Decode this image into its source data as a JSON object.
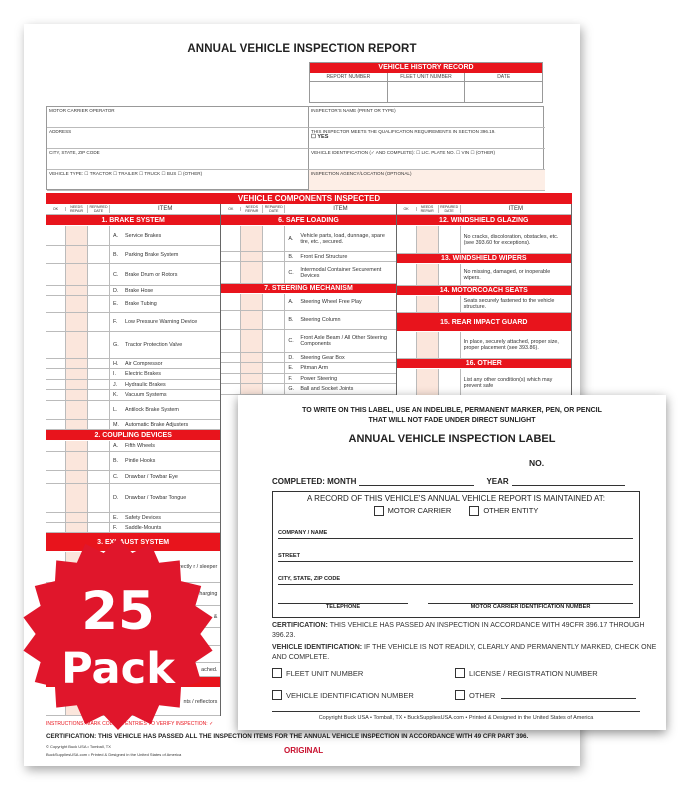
{
  "report": {
    "title": "ANNUAL VEHICLE INSPECTION REPORT",
    "history": {
      "title": "VEHICLE HISTORY RECORD",
      "columns": [
        "REPORT NUMBER",
        "FLEET UNIT NUMBER",
        "DATE"
      ]
    },
    "fields": {
      "motor_carrier": "MOTOR CARRIER OPERATOR",
      "inspector": "INSPECTOR'S NAME (PRINT OR TYPE)",
      "address": "ADDRESS",
      "qualification": "THIS INSPECTOR MEETS THE QUALIFICATION REQUIREMENTS IN SECTION 396.19.",
      "yes": "☐ YES",
      "city": "CITY, STATE, ZIP CODE",
      "vehicle_id": "VEHICLE IDENTIFICATION (✓ AND COMPLETE):   ☐ LIC. PLATE NO.   ☐ VIN   ☐ (OTHER)",
      "vehicle_type": "VEHICLE TYPE:   ☐ TRACTOR   ☐ TRAILER   ☐ TRUCK   ☐ BUS   ☐ (OTHER)",
      "agency": "INSPECTION AGENCY/LOCATION (OPTIONAL)"
    },
    "components_title": "VEHICLE COMPONENTS INSPECTED",
    "col_headers": {
      "ok": "OK",
      "needs": "NEEDS REPAIR",
      "repaired": "REPAIRED DATE",
      "item": "ITEM"
    },
    "columns": [
      [
        {
          "section": "1. BRAKE SYSTEM"
        },
        {
          "l": "A.",
          "t": "Service Brakes"
        },
        {
          "l": "B.",
          "t": "Parking Brake System"
        },
        {
          "l": "C.",
          "t": "Brake Drum or Rotors"
        },
        {
          "l": "D.",
          "t": "Brake Hose"
        },
        {
          "l": "E.",
          "t": "Brake Tubing"
        },
        {
          "l": "F.",
          "t": "Low Pressure Warning Device"
        },
        {
          "l": "G.",
          "t": "Tractor Protection Valve"
        },
        {
          "l": "H.",
          "t": "Air Compressor"
        },
        {
          "l": "I.",
          "t": "Electric Brakes"
        },
        {
          "l": "J.",
          "t": "Hydraulic Brakes"
        },
        {
          "l": "K.",
          "t": "Vacuum Systems"
        },
        {
          "l": "L.",
          "t": "Antilock Brake System"
        },
        {
          "l": "M.",
          "t": "Automatic Brake Adjusters"
        },
        {
          "section": "2. COUPLING DEVICES"
        },
        {
          "l": "A.",
          "t": "Fifth Wheels"
        },
        {
          "l": "B.",
          "t": "Pintle Hooks"
        },
        {
          "l": "C.",
          "t": "Drawbar / Towbar Eye"
        },
        {
          "l": "D.",
          "t": "Drawbar / Towbar Tongue"
        },
        {
          "l": "E.",
          "t": "Safety Devices"
        },
        {
          "l": "F.",
          "t": "Saddle-Mounts"
        },
        {
          "section": "3. EXHAUST SYSTEM"
        },
        {
          "l": "",
          "t": "ward of / directly r / sleeper"
        },
        {
          "l": "",
          "t": "harging"
        },
        {
          "l": "",
          "t": "&"
        },
        {
          "l": "",
          "t": ""
        },
        {
          "l": "",
          "t": ""
        },
        {
          "l": "",
          "t": "ached."
        },
        {
          "section": ""
        },
        {
          "l": "",
          "t": "nts / reflectors"
        }
      ],
      [
        {
          "section": "6. SAFE LOADING"
        },
        {
          "l": "A.",
          "t": "Vehicle parts, load, dunnage, spare tire, etc., secured."
        },
        {
          "l": "B.",
          "t": "Front End Structure"
        },
        {
          "l": "C.",
          "t": "Intermodal Container Securement Devices"
        },
        {
          "section": "7. STEERING MECHANISM"
        },
        {
          "l": "A.",
          "t": "Steering Wheel Free Play"
        },
        {
          "l": "B.",
          "t": "Steering Column"
        },
        {
          "l": "C.",
          "t": "Front Axle Beam / All Other Steering Components"
        },
        {
          "l": "D.",
          "t": "Steering Gear Box"
        },
        {
          "l": "E.",
          "t": "Pitman Arm"
        },
        {
          "l": "F.",
          "t": "Power Steering"
        },
        {
          "l": "G.",
          "t": "Ball and Socket Joints"
        }
      ],
      [
        {
          "section": "12. WINDSHIELD GLAZING"
        },
        {
          "l": "",
          "t": "No cracks, discoloration, obstacles, etc. (see 393.60 for exceptions)."
        },
        {
          "section": "13. WINDSHIELD WIPERS"
        },
        {
          "l": "",
          "t": "No missing, damaged, or inoperable wipers."
        },
        {
          "section": "14. MOTORCOACH SEATS"
        },
        {
          "l": "",
          "t": "Seats securely fastened to the vehicle structure."
        },
        {
          "section": "15. REAR IMPACT GUARD"
        },
        {
          "l": "",
          "t": "In place, securely attached, proper size, proper placement (see 393.86)."
        },
        {
          "section": "16. OTHER"
        },
        {
          "l": "",
          "t": "List any other condition(s) which may prevent safe"
        }
      ]
    ],
    "instructions": "INSTRUCTIONS: MARK COLUMN ENTRIES TO VERIFY INSPECTION:  ✓",
    "certification": "CERTIFICATION: THIS VEHICLE HAS PASSED ALL THE INSPECTION ITEMS FOR THE ANNUAL VEHICLE INSPECTION IN ACCORDANCE WITH 49 CFR PART 396.",
    "copyright1": "© Copyright Buck USA • Tomball, TX",
    "copyright2": "BuckSuppliesUSA.com • Printed & Designed in the United States of America",
    "copy_label": "ORIGINAL"
  },
  "label": {
    "instruction1": "TO WRITE ON THIS LABEL, USE AN INDELIBLE, PERMANENT MARKER, PEN, OR PENCIL",
    "instruction2": "THAT WILL NOT FADE UNDER DIRECT SUNLIGHT",
    "title": "ANNUAL VEHICLE INSPECTION LABEL",
    "no": "NO.",
    "completed_month": "COMPLETED: MONTH",
    "year": "YEAR",
    "record": "A RECORD OF THIS VEHICLE'S ANNUAL VEHICLE REPORT IS MAINTAINED AT:",
    "motor_carrier": "MOTOR CARRIER",
    "other_entity": "OTHER ENTITY",
    "company": "COMPANY / NAME",
    "street": "STREET",
    "city": "CITY, STATE, ZIP CODE",
    "telephone": "TELEPHONE",
    "mc_id": "MOTOR CARRIER IDENTIFICATION NUMBER",
    "cert_bold": "CERTIFICATION:",
    "cert_text": " THIS VEHICLE HAS PASSED AN INSPECTION IN ACCORDANCE WITH 49CFR 396.17 THROUGH 396.23.",
    "vid_bold": "VEHICLE IDENTIFICATION:",
    "vid_text": " IF THE VEHICLE IS NOT READILY, CLEARLY AND PERMANENTLY MARKED, CHECK ONE AND COMPLETE.",
    "fleet": "FLEET UNIT NUMBER",
    "license": "LICENSE / REGISTRATION NUMBER",
    "vin": "VEHICLE IDENTIFICATION NUMBER",
    "other": "OTHER",
    "copyright": "Copyright Buck USA • Tomball, TX • BuckSuppliesUSA.com • Printed & Designed in the United States of America"
  },
  "badge": {
    "number": "25",
    "word": "Pack",
    "color": "#e0162b"
  },
  "colors": {
    "accent": "#e8141c",
    "shade": "#fbe6dc"
  }
}
